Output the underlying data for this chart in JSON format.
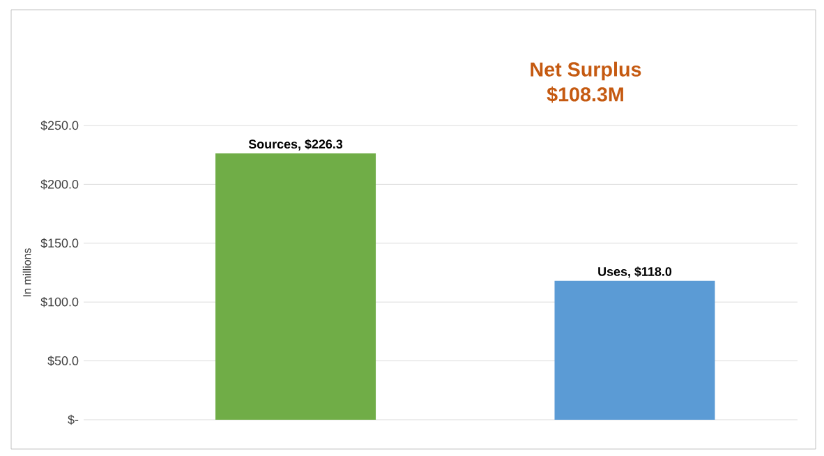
{
  "chart_data": {
    "type": "bar",
    "title": "Net Surplus",
    "subtitle": "$108.3M",
    "ylabel": "In millions",
    "categories": [
      null,
      null
    ],
    "values": [
      226.3,
      118.0
    ],
    "value_labels": [
      "Sources, $226.3",
      "Uses, $118.0"
    ],
    "colors": [
      "#70ad47",
      "#5b9bd5"
    ],
    "ylim": [
      0,
      250
    ],
    "yticks": [
      {
        "value": 0,
        "label": "$-"
      },
      {
        "value": 50,
        "label": "$50.0"
      },
      {
        "value": 100,
        "label": "$100.0"
      },
      {
        "value": 150,
        "label": "$150.0"
      },
      {
        "value": 200,
        "label": "$200.0"
      },
      {
        "value": 250,
        "label": "$250.0"
      }
    ],
    "grid": "y"
  }
}
